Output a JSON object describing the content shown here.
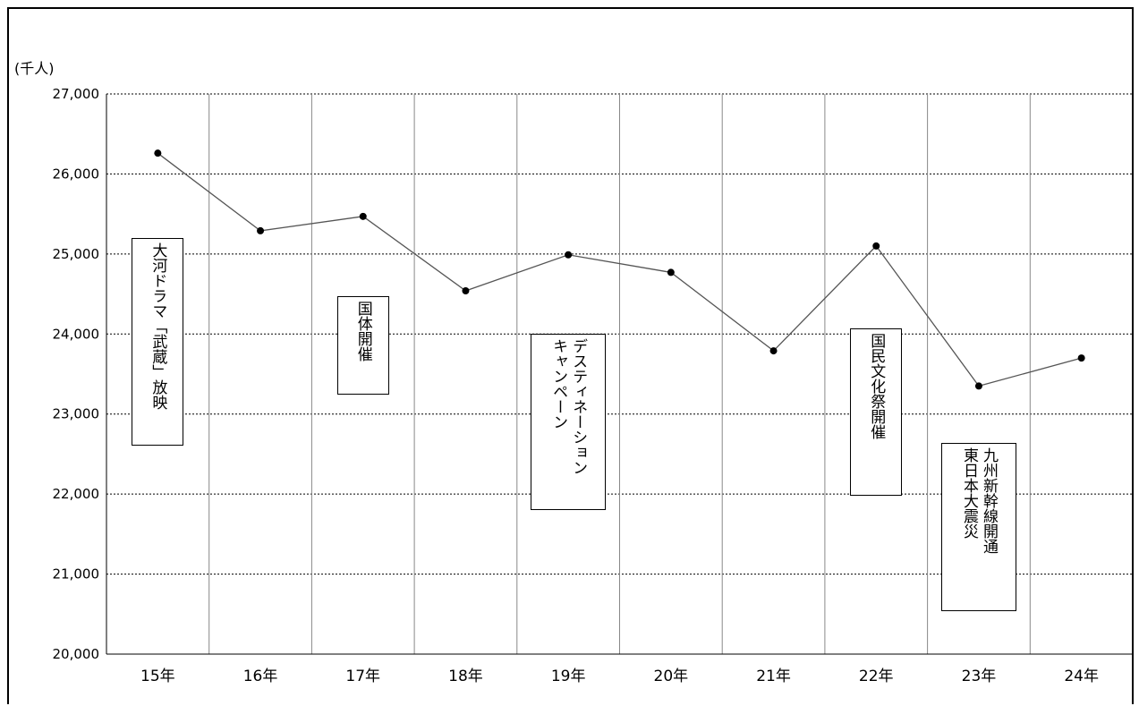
{
  "chart_data": {
    "type": "line",
    "unit_label": "(千人)",
    "categories": [
      "15年",
      "16年",
      "17年",
      "18年",
      "19年",
      "20年",
      "21年",
      "22年",
      "23年",
      "24年"
    ],
    "values": [
      26260,
      25290,
      25470,
      24540,
      24990,
      24770,
      23790,
      25100,
      23350,
      23700
    ],
    "ylim": [
      20000,
      27000
    ],
    "yticks": [
      "20,000",
      "21,000",
      "22,000",
      "23,000",
      "24,000",
      "25,000",
      "26,000",
      "27,000"
    ],
    "grid": true,
    "line_color": "#555555",
    "marker_color": "#000000",
    "annotations": [
      {
        "category_index": 0,
        "lines": [
          "大河ドラマ「武蔵」放映"
        ],
        "y_top": 25200,
        "y_bottom": 22600
      },
      {
        "category_index": 2,
        "lines": [
          "国体開催"
        ],
        "y_top": 24470,
        "y_bottom": 23240
      },
      {
        "category_index": 4,
        "lines": [
          "デスティネーション",
          "キャンペーン"
        ],
        "y_top": 24000,
        "y_bottom": 21800
      },
      {
        "category_index": 7,
        "lines": [
          "国民文化祭開催"
        ],
        "y_top": 24070,
        "y_bottom": 21980
      },
      {
        "category_index": 8,
        "lines": [
          "九州新幹線開通",
          "東日本大震災"
        ],
        "y_top": 22640,
        "y_bottom": 20540
      }
    ]
  }
}
